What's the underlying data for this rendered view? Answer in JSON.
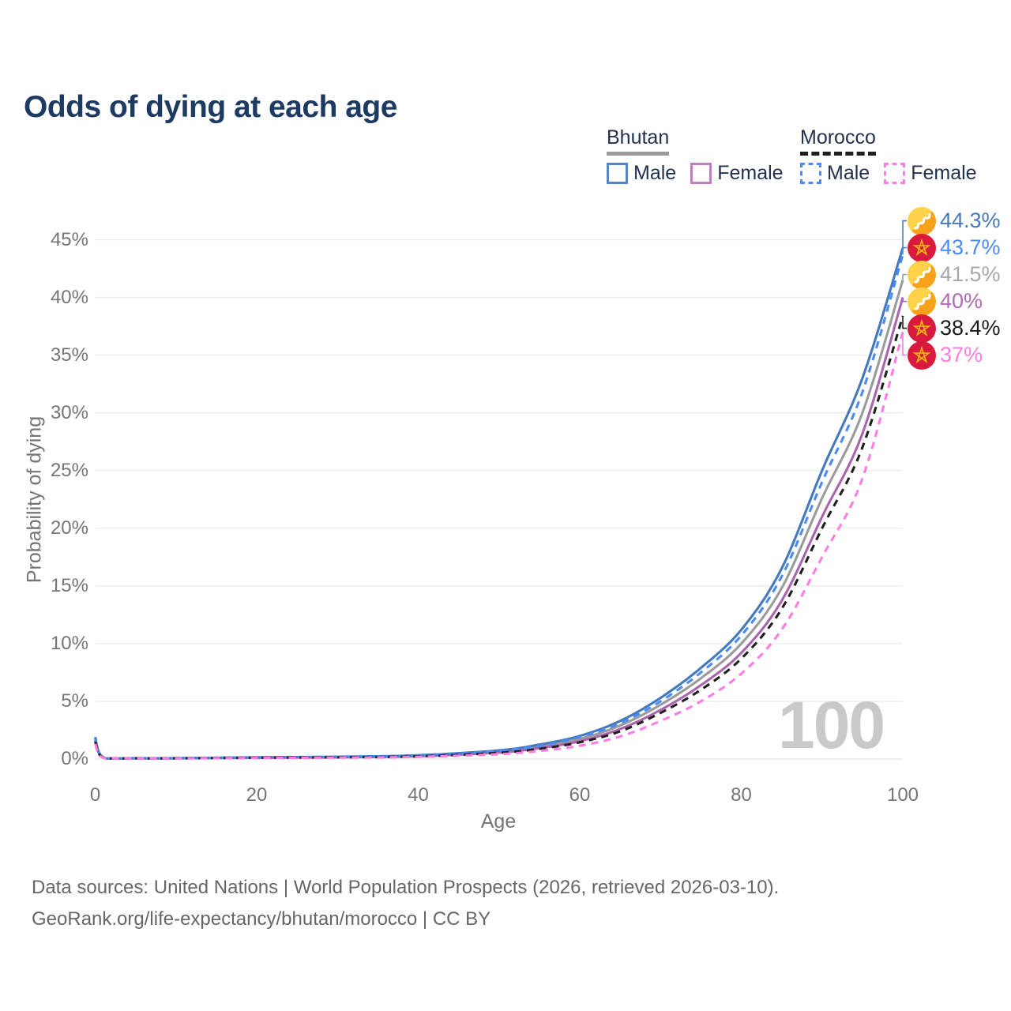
{
  "title": "Odds of dying at each age",
  "legend": {
    "groups": [
      {
        "name": "Bhutan",
        "line_style": "solid",
        "line_color": "#9b9b9b",
        "items": [
          {
            "label": "Male",
            "color": "#4579bd",
            "dash": false
          },
          {
            "label": "Female",
            "color": "#b573b5",
            "dash": false
          }
        ]
      },
      {
        "name": "Morocco",
        "line_style": "dashed",
        "line_color": "#1f1f1f",
        "items": [
          {
            "label": "Male",
            "color": "#4c8bf5",
            "dash": true
          },
          {
            "label": "Female",
            "color": "#fc7ee1",
            "dash": true
          }
        ]
      }
    ]
  },
  "axes": {
    "x": {
      "label": "Age",
      "ticks": [
        0,
        20,
        40,
        60,
        80,
        100
      ],
      "min": 0,
      "max": 100
    },
    "y": {
      "label": "Probability of dying",
      "ticks": [
        "0%",
        "5%",
        "10%",
        "15%",
        "20%",
        "25%",
        "30%",
        "35%",
        "40%",
        "45%"
      ],
      "min": 0,
      "max": 45,
      "unit": "%"
    }
  },
  "watermark": "100",
  "source": {
    "line1": "Data sources: United Nations | World Population Prospects (2026, retrieved 2026-03-10).",
    "line2": "GeoRank.org/life-expectancy/bhutan/morocco | CC BY"
  },
  "chart_data": {
    "type": "line",
    "title": "Odds of dying at each age",
    "xlabel": "Age",
    "ylabel": "Probability of dying",
    "xlim": [
      0,
      100
    ],
    "ylim": [
      0,
      45
    ],
    "grid": "horizontal",
    "legend_position": "top-right",
    "x": [
      0,
      1,
      5,
      10,
      20,
      30,
      40,
      50,
      55,
      60,
      65,
      70,
      75,
      80,
      85,
      90,
      95,
      100
    ],
    "series": [
      {
        "name": "Bhutan Male",
        "country": "Bhutan",
        "sex": "Male",
        "icon": "bhutan-flag-icon",
        "color": "#4579bd",
        "dash": false,
        "end_value": 44.3,
        "end_label": "44.3%",
        "label_color": "#4579bd",
        "values": [
          1.9,
          0.15,
          0.08,
          0.08,
          0.15,
          0.2,
          0.33,
          0.75,
          1.25,
          2.0,
          3.3,
          5.3,
          7.9,
          11.2,
          16.5,
          25.0,
          33.0,
          44.3
        ]
      },
      {
        "name": "Morocco Male",
        "country": "Morocco",
        "sex": "Male",
        "icon": "morocco-flag-icon",
        "color": "#4c8bf5",
        "dash": true,
        "end_value": 43.7,
        "end_label": "43.7%",
        "label_color": "#4c8bf5",
        "values": [
          1.7,
          0.13,
          0.07,
          0.07,
          0.14,
          0.19,
          0.31,
          0.7,
          1.15,
          1.9,
          3.1,
          5.0,
          7.5,
          10.7,
          15.8,
          24.0,
          31.8,
          43.7
        ]
      },
      {
        "name": "Bhutan",
        "country": "Bhutan",
        "sex": "Both",
        "icon": "bhutan-flag-icon",
        "color": "#9b9b9b",
        "dash": false,
        "end_value": 41.5,
        "end_label": "41.5%",
        "label_color": "#a8a8a8",
        "values": [
          1.8,
          0.14,
          0.07,
          0.07,
          0.13,
          0.18,
          0.28,
          0.65,
          1.08,
          1.75,
          2.9,
          4.7,
          7.0,
          10.0,
          14.8,
          22.6,
          30.0,
          41.5
        ]
      },
      {
        "name": "Bhutan Female",
        "country": "Bhutan",
        "sex": "Female",
        "icon": "bhutan-flag-icon",
        "color": "#a965ad",
        "dash": false,
        "end_value": 40,
        "end_label": "40%",
        "label_color": "#b06cb3",
        "values": [
          1.6,
          0.12,
          0.06,
          0.06,
          0.11,
          0.15,
          0.24,
          0.57,
          0.95,
          1.55,
          2.6,
          4.25,
          6.4,
          9.2,
          13.7,
          21.0,
          28.2,
          40.0
        ]
      },
      {
        "name": "Morocco",
        "country": "Morocco",
        "sex": "Both",
        "icon": "morocco-flag-icon",
        "color": "#1f1f1f",
        "dash": true,
        "end_value": 38.4,
        "end_label": "38.4%",
        "label_color": "#1a1a1a",
        "values": [
          1.5,
          0.12,
          0.06,
          0.06,
          0.11,
          0.15,
          0.23,
          0.54,
          0.88,
          1.45,
          2.4,
          4.0,
          6.0,
          8.7,
          13.0,
          20.0,
          27.0,
          38.4
        ]
      },
      {
        "name": "Morocco Female",
        "country": "Morocco",
        "sex": "Female",
        "icon": "morocco-flag-icon",
        "color": "#fc7ee1",
        "dash": true,
        "end_value": 37,
        "end_label": "37%",
        "label_color": "#fc7ee1",
        "values": [
          1.3,
          0.1,
          0.05,
          0.05,
          0.09,
          0.12,
          0.19,
          0.42,
          0.7,
          1.15,
          1.95,
          3.3,
          5.0,
          7.4,
          11.2,
          17.5,
          24.3,
          37.0
        ]
      }
    ],
    "annotation": {
      "age_marker": "100"
    }
  }
}
